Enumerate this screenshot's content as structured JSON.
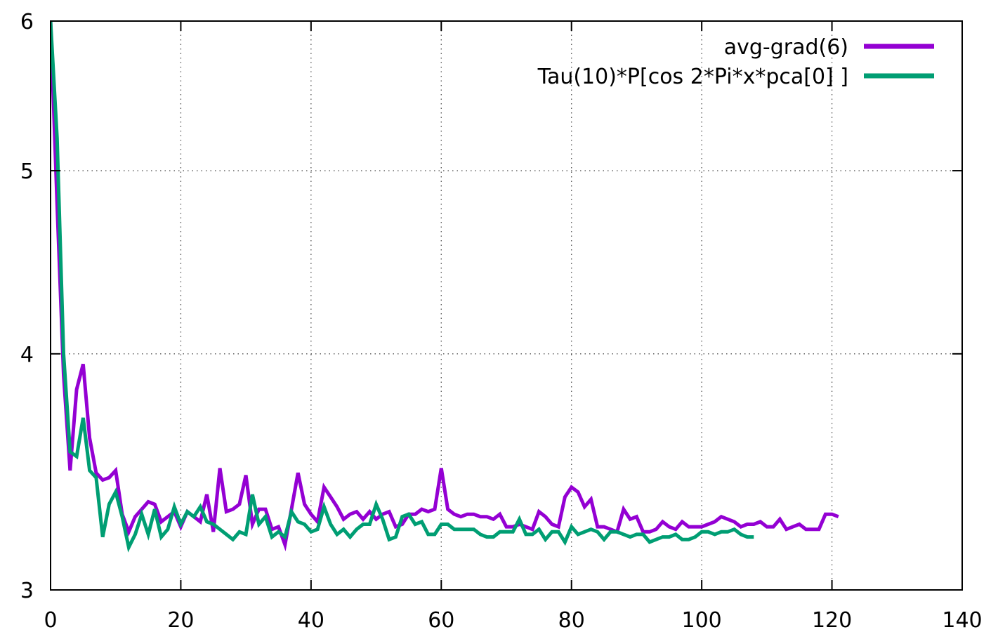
{
  "chart_data": {
    "type": "line",
    "title": "",
    "xlabel": "",
    "ylabel": "",
    "xlim": [
      0,
      140
    ],
    "ylim": [
      3,
      6
    ],
    "y_scale": "log",
    "x_ticks": [
      0,
      20,
      40,
      60,
      80,
      100,
      120,
      140
    ],
    "y_ticks": [
      3,
      4,
      5,
      6
    ],
    "grid": true,
    "legend_position": "top-right",
    "series": [
      {
        "name": "avg-grad(6)",
        "color": "#9400d3",
        "x": [
          0,
          1,
          2,
          3,
          4,
          5,
          6,
          7,
          8,
          9,
          10,
          11,
          12,
          13,
          14,
          15,
          16,
          17,
          18,
          19,
          20,
          21,
          22,
          23,
          24,
          25,
          26,
          27,
          28,
          29,
          30,
          31,
          32,
          33,
          34,
          35,
          36,
          37,
          38,
          39,
          40,
          41,
          42,
          43,
          44,
          45,
          46,
          47,
          48,
          49,
          50,
          51,
          52,
          53,
          54,
          55,
          56,
          57,
          58,
          59,
          60,
          61,
          62,
          63,
          64,
          65,
          66,
          67,
          68,
          69,
          70,
          71,
          72,
          73,
          74,
          75,
          76,
          77,
          78,
          79,
          80,
          81,
          82,
          83,
          84,
          85,
          86,
          87,
          88,
          89,
          90,
          91,
          92,
          93,
          94,
          95,
          96,
          97,
          98,
          99,
          100,
          101,
          102,
          103,
          104,
          105,
          106,
          107,
          108,
          109,
          110,
          111,
          112,
          113,
          114,
          115,
          116,
          117,
          118,
          119,
          120,
          121
        ],
        "y": [
          6.0,
          4.8,
          3.9,
          3.47,
          3.83,
          3.95,
          3.61,
          3.46,
          3.43,
          3.44,
          3.47,
          3.29,
          3.22,
          3.28,
          3.31,
          3.34,
          3.33,
          3.26,
          3.28,
          3.3,
          3.24,
          3.3,
          3.28,
          3.26,
          3.37,
          3.22,
          3.48,
          3.3,
          3.31,
          3.33,
          3.45,
          3.25,
          3.31,
          3.31,
          3.23,
          3.24,
          3.17,
          3.31,
          3.46,
          3.33,
          3.29,
          3.26,
          3.4,
          3.36,
          3.32,
          3.27,
          3.29,
          3.3,
          3.27,
          3.3,
          3.27,
          3.29,
          3.3,
          3.24,
          3.25,
          3.29,
          3.29,
          3.31,
          3.3,
          3.31,
          3.48,
          3.31,
          3.29,
          3.28,
          3.29,
          3.29,
          3.28,
          3.28,
          3.27,
          3.29,
          3.24,
          3.24,
          3.25,
          3.24,
          3.23,
          3.3,
          3.28,
          3.25,
          3.24,
          3.36,
          3.4,
          3.38,
          3.32,
          3.35,
          3.24,
          3.24,
          3.23,
          3.22,
          3.31,
          3.27,
          3.28,
          3.22,
          3.22,
          3.23,
          3.26,
          3.24,
          3.23,
          3.26,
          3.24,
          3.24,
          3.24,
          3.25,
          3.26,
          3.28,
          3.27,
          3.26,
          3.24,
          3.25,
          3.25,
          3.26,
          3.24,
          3.24,
          3.27,
          3.23,
          3.24,
          3.25,
          3.23,
          3.23,
          3.23,
          3.29,
          3.29,
          3.28
        ]
      },
      {
        "name": "Tau(10)*P[cos 2*Pi*x*pca[0] ]",
        "color": "#009e73",
        "x": [
          0,
          1,
          2,
          3,
          4,
          5,
          6,
          7,
          8,
          9,
          10,
          11,
          12,
          13,
          14,
          15,
          16,
          17,
          18,
          19,
          20,
          21,
          22,
          23,
          24,
          25,
          26,
          27,
          28,
          29,
          30,
          31,
          32,
          33,
          34,
          35,
          36,
          37,
          38,
          39,
          40,
          41,
          42,
          43,
          44,
          45,
          46,
          47,
          48,
          49,
          50,
          51,
          52,
          53,
          54,
          55,
          56,
          57,
          58,
          59,
          60,
          61,
          62,
          63,
          64,
          65,
          66,
          67,
          68,
          69,
          70,
          71,
          72,
          73,
          74,
          75,
          76,
          77,
          78,
          79,
          80,
          81,
          82,
          83,
          84,
          85,
          86,
          87,
          88,
          89,
          90,
          91,
          92,
          93,
          94,
          95,
          96,
          97,
          98,
          99,
          100,
          101,
          102,
          103,
          104,
          105,
          106,
          107,
          108
        ],
        "y": [
          6.0,
          5.2,
          4.0,
          3.55,
          3.53,
          3.7,
          3.47,
          3.44,
          3.2,
          3.33,
          3.38,
          3.28,
          3.16,
          3.21,
          3.29,
          3.21,
          3.31,
          3.2,
          3.23,
          3.32,
          3.25,
          3.3,
          3.28,
          3.32,
          3.26,
          3.25,
          3.23,
          3.21,
          3.19,
          3.22,
          3.21,
          3.37,
          3.25,
          3.28,
          3.2,
          3.22,
          3.2,
          3.3,
          3.26,
          3.25,
          3.22,
          3.23,
          3.32,
          3.25,
          3.21,
          3.23,
          3.2,
          3.23,
          3.25,
          3.25,
          3.33,
          3.27,
          3.19,
          3.2,
          3.28,
          3.29,
          3.25,
          3.26,
          3.21,
          3.21,
          3.25,
          3.25,
          3.23,
          3.23,
          3.23,
          3.23,
          3.21,
          3.2,
          3.2,
          3.22,
          3.22,
          3.22,
          3.27,
          3.21,
          3.21,
          3.23,
          3.19,
          3.22,
          3.22,
          3.18,
          3.24,
          3.21,
          3.22,
          3.23,
          3.22,
          3.19,
          3.22,
          3.22,
          3.21,
          3.2,
          3.21,
          3.21,
          3.18,
          3.19,
          3.2,
          3.2,
          3.21,
          3.19,
          3.19,
          3.2,
          3.22,
          3.22,
          3.21,
          3.22,
          3.22,
          3.23,
          3.21,
          3.2,
          3.2
        ]
      }
    ]
  }
}
